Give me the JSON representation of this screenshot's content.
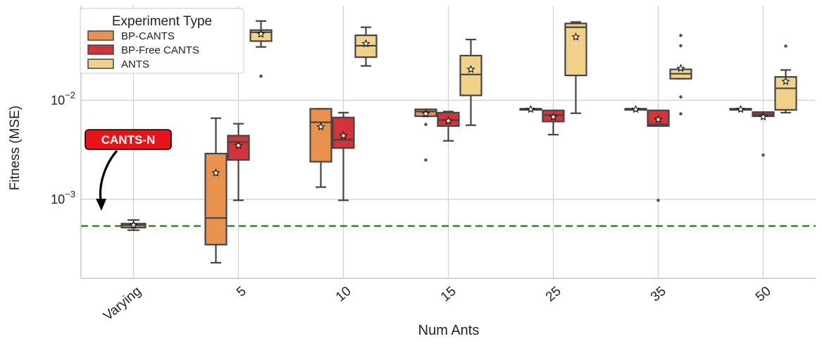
{
  "chart_data": {
    "type": "box",
    "title": "",
    "xlabel": "Num Ants",
    "ylabel": "Fitness (MSE)",
    "yscale": "log",
    "ylim": [
      0.00016,
      0.09
    ],
    "y_ticks": [
      {
        "value": 0.001,
        "base": "10",
        "exp": "−3"
      },
      {
        "value": 0.01,
        "base": "10",
        "exp": "−2"
      }
    ],
    "categories": [
      "Varying",
      "5",
      "10",
      "15",
      "25",
      "35",
      "50"
    ],
    "legend": {
      "title": "Experiment Type",
      "position": "top-left",
      "entries": [
        "BP-CANTS",
        "BP-Free CANTS",
        "ANTS"
      ]
    },
    "series": [
      {
        "name": "BP-CANTS",
        "color": "#e8924e",
        "boxes": [
          {
            "category": "5",
            "whislo": 0.00023,
            "q1": 0.00035,
            "med": 0.00065,
            "q3": 0.0029,
            "whishi": 0.0066,
            "mean": 0.00185,
            "fliers": []
          },
          {
            "category": "10",
            "whislo": 0.00133,
            "q1": 0.0024,
            "med": 0.006,
            "q3": 0.0082,
            "whishi": 0.0082,
            "mean": 0.0054,
            "fliers": []
          },
          {
            "category": "15",
            "whislo": 0.0069,
            "q1": 0.0069,
            "med": 0.0077,
            "q3": 0.0081,
            "whishi": 0.0081,
            "mean": 0.0073,
            "fliers": [
              0.0057,
              0.0025
            ]
          },
          {
            "category": "25",
            "whislo": 0.0082,
            "q1": 0.0082,
            "med": 0.0082,
            "q3": 0.0082,
            "whishi": 0.0082,
            "mean": 0.0081,
            "fliers": []
          },
          {
            "category": "35",
            "whislo": 0.0082,
            "q1": 0.0082,
            "med": 0.0082,
            "q3": 0.0082,
            "whishi": 0.0082,
            "mean": 0.0081,
            "fliers": []
          },
          {
            "category": "50",
            "whislo": 0.0082,
            "q1": 0.0082,
            "med": 0.0082,
            "q3": 0.0082,
            "whishi": 0.0082,
            "mean": 0.0081,
            "fliers": []
          }
        ]
      },
      {
        "name": "BP-Free CANTS",
        "color": "#d1343a",
        "boxes": [
          {
            "category": "5",
            "whislo": 0.00098,
            "q1": 0.0025,
            "med": 0.0038,
            "q3": 0.0044,
            "whishi": 0.0058,
            "mean": 0.0035,
            "fliers": []
          },
          {
            "category": "10",
            "whislo": 0.00098,
            "q1": 0.0033,
            "med": 0.004,
            "q3": 0.0067,
            "whishi": 0.0075,
            "mean": 0.0044,
            "fliers": []
          },
          {
            "category": "15",
            "whislo": 0.0039,
            "q1": 0.0055,
            "med": 0.0063,
            "q3": 0.0075,
            "whishi": 0.0077,
            "mean": 0.0062,
            "fliers": []
          },
          {
            "category": "25",
            "whislo": 0.0045,
            "q1": 0.0061,
            "med": 0.0071,
            "q3": 0.0079,
            "whishi": 0.0079,
            "mean": 0.0068,
            "fliers": []
          },
          {
            "category": "35",
            "whislo": 0.0055,
            "q1": 0.0055,
            "med": 0.0057,
            "q3": 0.0079,
            "whishi": 0.0079,
            "mean": 0.0064,
            "fliers": [
              0.00098
            ]
          },
          {
            "category": "50",
            "whislo": 0.0069,
            "q1": 0.0069,
            "med": 0.0072,
            "q3": 0.0076,
            "whishi": 0.0076,
            "mean": 0.0068,
            "fliers": [
              0.0028
            ]
          }
        ]
      },
      {
        "name": "ANTS",
        "color": "#f2d18a",
        "boxes": [
          {
            "category": "5",
            "whislo": 0.0345,
            "q1": 0.0395,
            "med": 0.0485,
            "q3": 0.051,
            "whishi": 0.063,
            "mean": 0.0465,
            "fliers": [
              0.0175
            ]
          },
          {
            "category": "10",
            "whislo": 0.0222,
            "q1": 0.0272,
            "med": 0.0355,
            "q3": 0.0452,
            "whishi": 0.0545,
            "mean": 0.0372,
            "fliers": []
          },
          {
            "category": "15",
            "whislo": 0.0056,
            "q1": 0.0112,
            "med": 0.0182,
            "q3": 0.0282,
            "whishi": 0.041,
            "mean": 0.0205,
            "fliers": []
          },
          {
            "category": "25",
            "whislo": 0.0074,
            "q1": 0.0178,
            "med": 0.0545,
            "q3": 0.0595,
            "whishi": 0.0615,
            "mean": 0.0435,
            "fliers": []
          },
          {
            "category": "35",
            "whislo": 0.0165,
            "q1": 0.0165,
            "med": 0.0185,
            "q3": 0.0205,
            "whishi": 0.0205,
            "mean": 0.021,
            "fliers": [
              0.045,
              0.0355,
              0.0108,
              0.0073
            ]
          },
          {
            "category": "50",
            "whislo": 0.0075,
            "q1": 0.008,
            "med": 0.0132,
            "q3": 0.0172,
            "whishi": 0.0202,
            "mean": 0.0155,
            "fliers": [
              0.0352
            ]
          }
        ]
      },
      {
        "name": "CANTS-N",
        "color": "#e8924e",
        "boxes": [
          {
            "category": "Varying",
            "whislo": 0.00049,
            "q1": 0.00052,
            "med": 0.00055,
            "q3": 0.00057,
            "whishi": 0.00062,
            "mean": 0.00055,
            "fliers": []
          }
        ]
      }
    ],
    "reference_line": {
      "value": 0.00054,
      "color": "#1e8a1e",
      "style": "dashed"
    },
    "annotation": {
      "text": "CANTS-N",
      "bg_color": "#e8121a",
      "text_color": "#ffffff",
      "target_category": "Varying"
    },
    "grid": true
  }
}
